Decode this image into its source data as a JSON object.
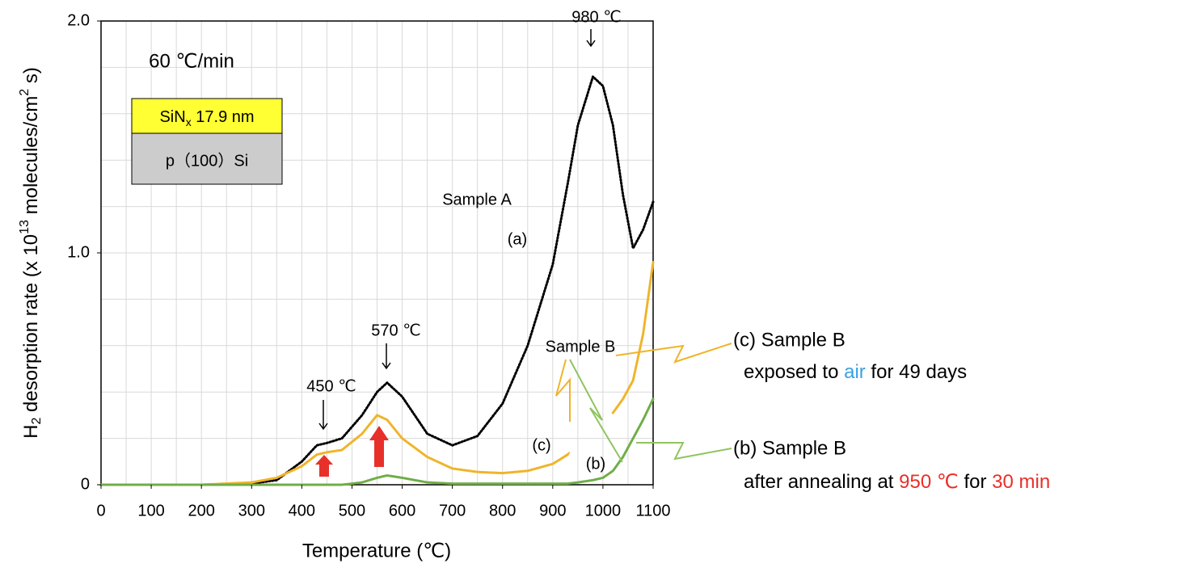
{
  "chart_data": {
    "type": "line",
    "xlabel": "Temperature (℃)",
    "ylabel_parts": [
      "H",
      "2",
      " desorption rate (x 10",
      "13",
      " molecules/cm",
      "2",
      " s)"
    ],
    "x": [
      0,
      100,
      200,
      300,
      350,
      400,
      430,
      450,
      480,
      520,
      550,
      570,
      600,
      650,
      700,
      750,
      800,
      850,
      900,
      930,
      950,
      980,
      1000,
      1020,
      1040,
      1060,
      1080,
      1100
    ],
    "series": [
      {
        "name": "Sample A",
        "label": "(a)",
        "color": "#000000",
        "values": [
          0,
          0,
          0,
          0.005,
          0.02,
          0.1,
          0.17,
          0.18,
          0.2,
          0.3,
          0.4,
          0.44,
          0.38,
          0.22,
          0.17,
          0.21,
          0.35,
          0.6,
          0.95,
          1.3,
          1.55,
          1.76,
          1.72,
          1.55,
          1.25,
          1.02,
          1.1,
          1.22
        ]
      },
      {
        "name": "Sample B",
        "label": "(c)",
        "color": "#f0b429",
        "values": [
          0,
          0,
          0,
          0.01,
          0.03,
          0.08,
          0.13,
          0.14,
          0.15,
          0.22,
          0.3,
          0.28,
          0.2,
          0.12,
          0.07,
          0.055,
          0.05,
          0.06,
          0.09,
          0.13,
          null,
          null,
          null,
          0.31,
          0.37,
          0.45,
          0.65,
          0.96
        ]
      },
      {
        "name": "Sample B",
        "label": "(b)",
        "color": "#70ad47",
        "values": [
          0,
          0,
          0,
          0,
          0,
          0,
          0,
          0,
          0,
          0.01,
          0.03,
          0.04,
          0.03,
          0.01,
          0.005,
          0.005,
          0.005,
          0.005,
          0.005,
          0.005,
          0.01,
          0.02,
          0.03,
          0.06,
          0.12,
          0.2,
          0.28,
          0.37
        ]
      }
    ],
    "xlim": [
      0,
      1100
    ],
    "ylim": [
      0,
      2
    ],
    "xticks": [
      0,
      100,
      200,
      300,
      400,
      500,
      600,
      700,
      800,
      900,
      1000,
      1100
    ],
    "yticks": [
      0,
      {
        "value": 1,
        "label": "1.0"
      },
      {
        "value": 2,
        "label": "2.0"
      }
    ],
    "xgrid": [
      50,
      100,
      150,
      200,
      250,
      300,
      350,
      400,
      450,
      500,
      550,
      600,
      650,
      700,
      750,
      800,
      850,
      900,
      950,
      1000,
      1050
    ],
    "ygrid": [
      0.2,
      0.4,
      0.6,
      0.8,
      1,
      1.2,
      1.4,
      1.6,
      1.8
    ],
    "rate": "60 ℃/min",
    "film": "SiN",
    "film_subscript": "x",
    "film_thickness": " 17.9 nm",
    "substrate": "p（100）Si",
    "peaks": [
      {
        "label": "980 ℃"
      },
      {
        "label": "570 ℃"
      },
      {
        "label": "450 ℃"
      }
    ],
    "notes": {
      "c": [
        "(c) Sample B",
        "exposed to ",
        "air",
        " for 49 days"
      ],
      "b": [
        "(b) Sample B",
        "after annealing at ",
        "950 ℃",
        " for ",
        "30 min"
      ]
    }
  }
}
